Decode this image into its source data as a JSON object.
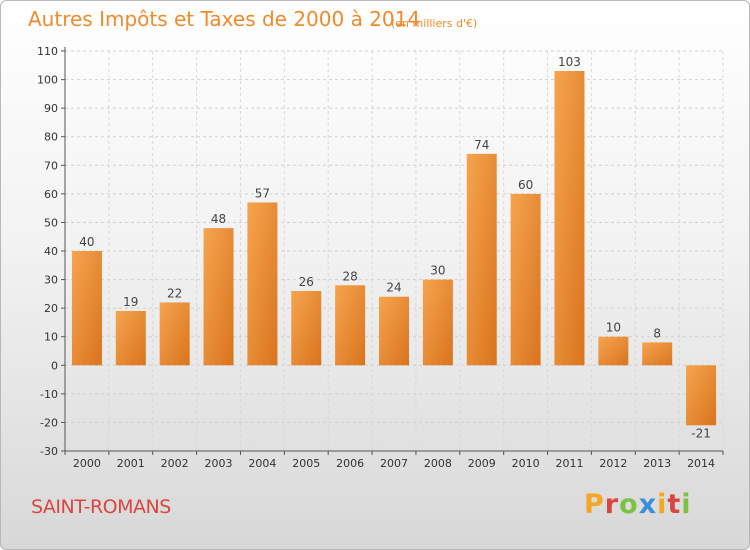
{
  "title": "Autres Impôts et Taxes de 2000 à 2014",
  "subtitle": "(en milliers d'€)",
  "commune": "SAINT-ROMANS",
  "logo": {
    "letters": [
      "P",
      "r",
      "o",
      "x",
      "i",
      "t",
      "i"
    ],
    "colors": [
      "#f5a623",
      "#d9463f",
      "#7cc242",
      "#3a8fd8",
      "#f5a623",
      "#d9463f",
      "#7cc242"
    ]
  },
  "colors": {
    "bar_light": "#f6a44f",
    "bar_dark": "#d9741d",
    "title": "#f08a2a",
    "commune": "#d9463f"
  },
  "chart_data": {
    "type": "bar",
    "categories": [
      "2000",
      "2001",
      "2002",
      "2003",
      "2004",
      "2005",
      "2006",
      "2007",
      "2008",
      "2009",
      "2010",
      "2011",
      "2012",
      "2013",
      "2014"
    ],
    "values": [
      40,
      19,
      22,
      48,
      57,
      26,
      28,
      24,
      30,
      74,
      60,
      103,
      10,
      8,
      -21
    ],
    "ylim": [
      -30,
      110
    ],
    "yticks": [
      -30,
      -20,
      -10,
      0,
      10,
      20,
      30,
      40,
      50,
      60,
      70,
      80,
      90,
      100,
      110
    ],
    "grid": true
  }
}
